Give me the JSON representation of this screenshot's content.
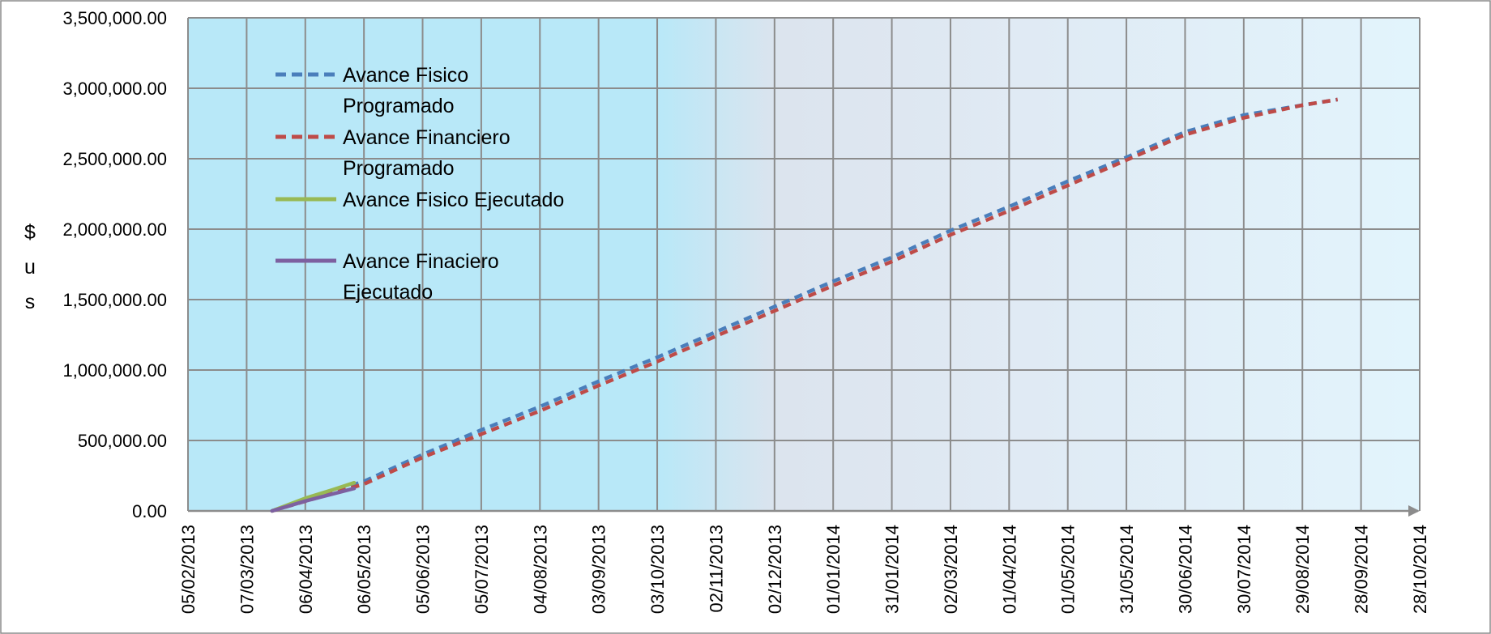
{
  "chart_data": {
    "type": "line",
    "title": "",
    "xlabel": "",
    "ylabel": "$us",
    "ylabel_chars": [
      "$",
      "u",
      "s"
    ],
    "x_ticks": [
      "05/02/2013",
      "07/03/2013",
      "06/04/2013",
      "06/05/2013",
      "05/06/2013",
      "05/07/2013",
      "04/08/2013",
      "03/09/2013",
      "03/10/2013",
      "02/11/2013",
      "02/12/2013",
      "01/01/2014",
      "31/01/2014",
      "02/03/2014",
      "01/04/2014",
      "01/05/2014",
      "31/05/2014",
      "30/06/2014",
      "30/07/2014",
      "29/08/2014",
      "28/09/2014",
      "28/10/2014"
    ],
    "y_ticks": [
      "0.00",
      "500,000.00",
      "1,000,000.00",
      "1,500,000.00",
      "2,000,000.00",
      "2,500,000.00",
      "3,000,000.00",
      "3,500,000.00"
    ],
    "ylim": [
      0,
      3500000
    ],
    "xlim": [
      "05/02/2013",
      "28/10/2014"
    ],
    "grid": true,
    "legend_position": "top-left",
    "series": [
      {
        "name": "Avance Fisico Programado",
        "color": "#4a7ebb",
        "style": "dashed",
        "points": [
          [
            "20/03/2013",
            0
          ],
          [
            "06/05/2013",
            210000
          ],
          [
            "05/06/2013",
            400000
          ],
          [
            "05/07/2013",
            575000
          ],
          [
            "04/08/2013",
            740000
          ],
          [
            "03/09/2013",
            920000
          ],
          [
            "03/10/2013",
            1090000
          ],
          [
            "02/11/2013",
            1270000
          ],
          [
            "02/12/2013",
            1450000
          ],
          [
            "01/01/2014",
            1630000
          ],
          [
            "31/01/2014",
            1800000
          ],
          [
            "02/03/2014",
            1990000
          ],
          [
            "01/04/2014",
            2160000
          ],
          [
            "01/05/2014",
            2340000
          ],
          [
            "31/05/2014",
            2510000
          ],
          [
            "30/06/2014",
            2690000
          ],
          [
            "30/07/2014",
            2810000
          ],
          [
            "29/08/2014",
            2880000
          ],
          [
            "16/09/2014",
            2920000
          ]
        ]
      },
      {
        "name": "Avance Financiero Programado",
        "color": "#be4b48",
        "style": "dashed",
        "points": [
          [
            "20/03/2013",
            0
          ],
          [
            "06/05/2013",
            190000
          ],
          [
            "05/06/2013",
            380000
          ],
          [
            "05/07/2013",
            545000
          ],
          [
            "04/08/2013",
            710000
          ],
          [
            "03/09/2013",
            890000
          ],
          [
            "03/10/2013",
            1060000
          ],
          [
            "02/11/2013",
            1240000
          ],
          [
            "02/12/2013",
            1420000
          ],
          [
            "01/01/2014",
            1600000
          ],
          [
            "31/01/2014",
            1770000
          ],
          [
            "02/03/2014",
            1960000
          ],
          [
            "01/04/2014",
            2130000
          ],
          [
            "01/05/2014",
            2310000
          ],
          [
            "31/05/2014",
            2490000
          ],
          [
            "30/06/2014",
            2670000
          ],
          [
            "30/07/2014",
            2790000
          ],
          [
            "29/08/2014",
            2880000
          ],
          [
            "16/09/2014",
            2920000
          ]
        ]
      },
      {
        "name": "Avance Fisico Ejecutado",
        "color": "#98b954",
        "style": "solid",
        "points": [
          [
            "20/03/2013",
            0
          ],
          [
            "06/04/2013",
            90000
          ],
          [
            "20/04/2013",
            150000
          ],
          [
            "01/05/2013",
            200000
          ]
        ]
      },
      {
        "name": "Avance Finaciero Ejecutado",
        "color": "#7d60a0",
        "style": "solid",
        "points": [
          [
            "20/03/2013",
            0
          ],
          [
            "06/04/2013",
            70000
          ],
          [
            "01/05/2013",
            160000
          ]
        ]
      }
    ]
  }
}
